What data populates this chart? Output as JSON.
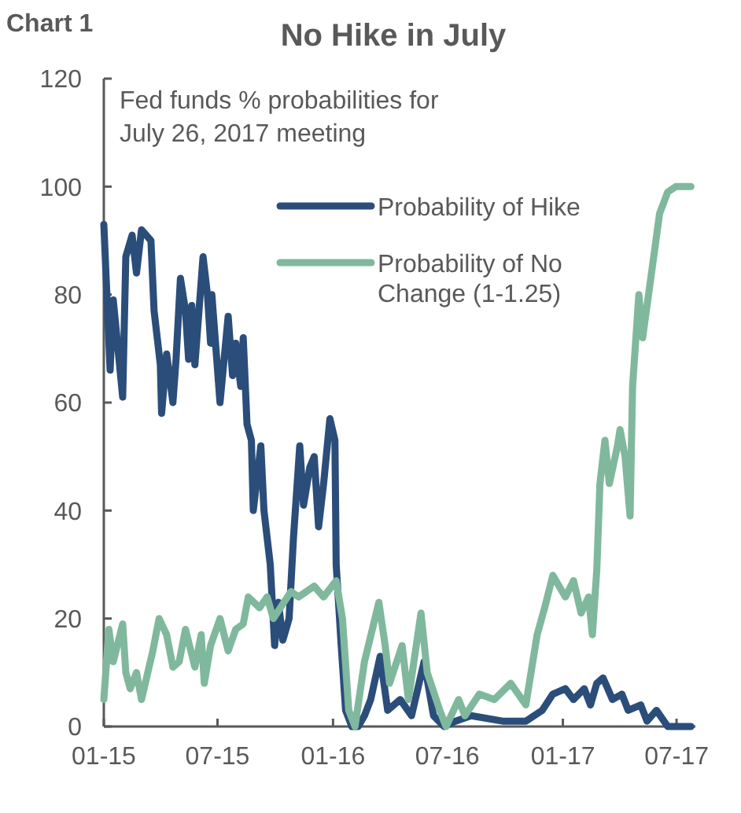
{
  "chart_data": {
    "type": "line",
    "title": "No Hike in July",
    "annotations": [
      "Chart 1",
      "Fed funds % probabilities for July 26, 2017 meeting"
    ],
    "xlim": [
      "2015-01-01",
      "2017-07-31"
    ],
    "xticks": [
      {
        "value": "2015-01-01",
        "label": "01-15"
      },
      {
        "value": "2015-07-01",
        "label": "07-15"
      },
      {
        "value": "2016-01-01",
        "label": "01-16"
      },
      {
        "value": "2016-07-01",
        "label": "07-16"
      },
      {
        "value": "2017-01-01",
        "label": "01-17"
      },
      {
        "value": "2017-07-01",
        "label": "07-17"
      }
    ],
    "ylim": [
      0,
      120
    ],
    "yticks": [
      0,
      20,
      40,
      60,
      80,
      100,
      120
    ],
    "grid": false,
    "legend": "top right",
    "marker": "none",
    "line_style": "solid",
    "series": [
      {
        "name": "Probability of Hike",
        "color": "#2b4d7a",
        "x": [
          "2015-01-01",
          "2015-01-11",
          "2015-01-16",
          "2015-01-31",
          "2015-02-05",
          "2015-02-15",
          "2015-02-22",
          "2015-03-02",
          "2015-03-17",
          "2015-03-22",
          "2015-03-27",
          "2015-04-01",
          "2015-04-03",
          "2015-04-11",
          "2015-04-21",
          "2015-04-26",
          "2015-05-03",
          "2015-05-11",
          "2015-05-16",
          "2015-05-21",
          "2015-05-26",
          "2015-06-08",
          "2015-06-15",
          "2015-06-20",
          "2015-06-22",
          "2015-07-05",
          "2015-07-18",
          "2015-07-25",
          "2015-07-30",
          "2015-08-07",
          "2015-08-11",
          "2015-08-17",
          "2015-08-24",
          "2015-08-27",
          "2015-09-08",
          "2015-09-13",
          "2015-09-23",
          "2015-09-30",
          "2015-10-06",
          "2015-10-13",
          "2015-10-23",
          "2015-10-30",
          "2015-11-09",
          "2015-11-15",
          "2015-11-25",
          "2015-12-02",
          "2015-12-09",
          "2015-12-17",
          "2015-12-27",
          "2016-01-04",
          "2016-01-06",
          "2016-01-14",
          "2016-01-21",
          "2016-01-31",
          "2016-02-10",
          "2016-02-20",
          "2016-03-01",
          "2016-03-16",
          "2016-03-28",
          "2016-04-17",
          "2016-05-05",
          "2016-05-25",
          "2016-06-09",
          "2016-06-26",
          "2016-07-14",
          "2016-08-08",
          "2016-09-27",
          "2016-11-03",
          "2016-11-29",
          "2016-12-16",
          "2017-01-05",
          "2017-01-18",
          "2017-02-04",
          "2017-02-14",
          "2017-02-24",
          "2017-03-06",
          "2017-03-21",
          "2017-04-05",
          "2017-04-15",
          "2017-05-05",
          "2017-05-15",
          "2017-05-30",
          "2017-06-17",
          "2017-07-24"
        ],
        "values": [
          93,
          66,
          79,
          61,
          87,
          91,
          84,
          92,
          90,
          77,
          72,
          67,
          58,
          69,
          60,
          68,
          83,
          77,
          68,
          78,
          67,
          87,
          80,
          71,
          80,
          60,
          76,
          65,
          71,
          63,
          72,
          56,
          53,
          40,
          52,
          40,
          30,
          15,
          23,
          16,
          20,
          35,
          52,
          41,
          48,
          50,
          37,
          45,
          57,
          53,
          30,
          15,
          3,
          0,
          0,
          2,
          5,
          13,
          3,
          5,
          2,
          12,
          2,
          0,
          1,
          2,
          1,
          1,
          3,
          6,
          7,
          5,
          7,
          4,
          8,
          9,
          5,
          6,
          3,
          4,
          1,
          3,
          0,
          0
        ]
      },
      {
        "name": "Probability of No Change (1-1.25)",
        "color": "#80b89d",
        "x": [
          "2015-01-01",
          "2015-01-09",
          "2015-01-16",
          "2015-01-31",
          "2015-02-05",
          "2015-02-12",
          "2015-02-22",
          "2015-03-02",
          "2015-03-20",
          "2015-03-30",
          "2015-04-11",
          "2015-04-21",
          "2015-05-01",
          "2015-05-11",
          "2015-05-26",
          "2015-06-05",
          "2015-06-10",
          "2015-06-20",
          "2015-07-05",
          "2015-07-18",
          "2015-07-30",
          "2015-08-11",
          "2015-08-19",
          "2015-09-06",
          "2015-09-18",
          "2015-09-28",
          "2015-10-26",
          "2015-11-07",
          "2015-12-02",
          "2015-12-17",
          "2016-01-06",
          "2016-01-16",
          "2016-01-26",
          "2016-02-05",
          "2016-02-20",
          "2016-03-14",
          "2016-03-24",
          "2016-03-31",
          "2016-04-20",
          "2016-04-30",
          "2016-05-20",
          "2016-05-30",
          "2016-06-19",
          "2016-06-29",
          "2016-07-19",
          "2016-07-29",
          "2016-08-21",
          "2016-09-14",
          "2016-10-10",
          "2016-11-03",
          "2016-11-21",
          "2016-12-03",
          "2016-12-16",
          "2017-01-05",
          "2017-01-18",
          "2017-01-30",
          "2017-02-11",
          "2017-02-17",
          "2017-02-24",
          "2017-03-01",
          "2017-03-09",
          "2017-03-16",
          "2017-03-29",
          "2017-04-02",
          "2017-04-10",
          "2017-04-18",
          "2017-04-22",
          "2017-05-02",
          "2017-05-08",
          "2017-05-28",
          "2017-06-04",
          "2017-06-17",
          "2017-06-30",
          "2017-07-24"
        ],
        "values": [
          5,
          18,
          12,
          19,
          10,
          7,
          10,
          5,
          14,
          20,
          17,
          11,
          12,
          18,
          11,
          17,
          8,
          15,
          20,
          14,
          18,
          19,
          24,
          22,
          24,
          20,
          25,
          24,
          26,
          24,
          27,
          20,
          3,
          0,
          12,
          23,
          15,
          8,
          15,
          5,
          21,
          10,
          3,
          0,
          5,
          2,
          6,
          5,
          8,
          4,
          17,
          22,
          28,
          24,
          27,
          21,
          24,
          17,
          29,
          45,
          53,
          45,
          52,
          55,
          50,
          39,
          63,
          80,
          72,
          89,
          95,
          99,
          100,
          100
        ]
      }
    ]
  }
}
